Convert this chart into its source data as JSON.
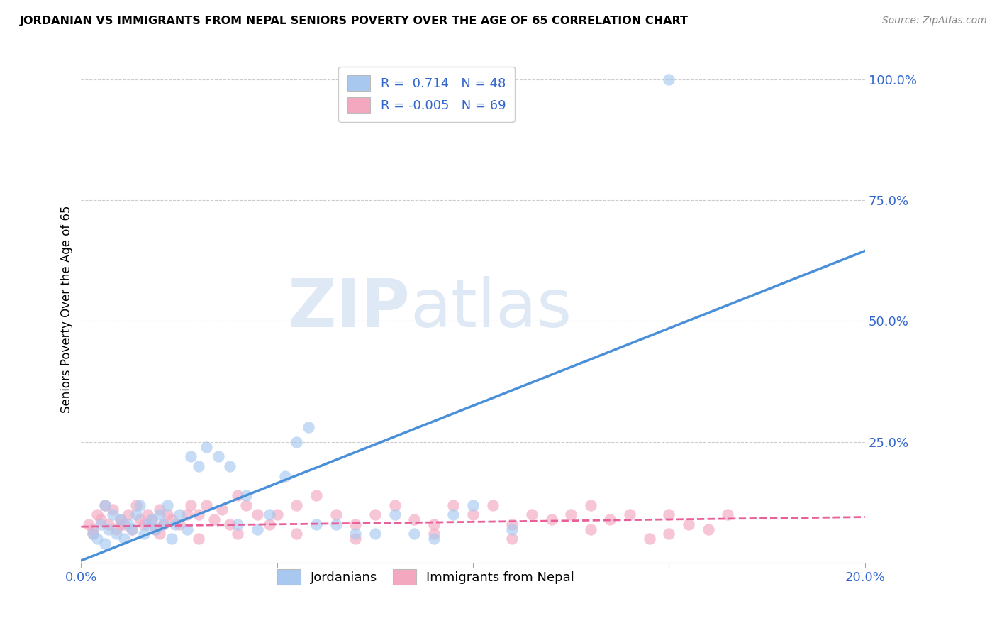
{
  "title": "JORDANIAN VS IMMIGRANTS FROM NEPAL SENIORS POVERTY OVER THE AGE OF 65 CORRELATION CHART",
  "source": "Source: ZipAtlas.com",
  "ylabel": "Seniors Poverty Over the Age of 65",
  "xlim": [
    0.0,
    0.2
  ],
  "ylim": [
    0.0,
    1.05
  ],
  "jordanian_color": "#A8C8F0",
  "nepal_color": "#F4A8C0",
  "jordan_R": 0.714,
  "jordan_N": 48,
  "nepal_R": -0.005,
  "nepal_N": 69,
  "trend_blue": "#4A90D9",
  "trend_pink": "#E8609A",
  "watermark_color": "#C5D8ED",
  "jordanian_x": [
    0.003,
    0.004,
    0.005,
    0.006,
    0.007,
    0.008,
    0.009,
    0.01,
    0.011,
    0.012,
    0.013,
    0.014,
    0.015,
    0.016,
    0.017,
    0.018,
    0.019,
    0.02,
    0.021,
    0.022,
    0.023,
    0.024,
    0.025,
    0.027,
    0.028,
    0.03,
    0.032,
    0.035,
    0.038,
    0.04,
    0.042,
    0.045,
    0.048,
    0.052,
    0.055,
    0.058,
    0.06,
    0.065,
    0.07,
    0.075,
    0.08,
    0.085,
    0.09,
    0.095,
    0.1,
    0.11,
    0.15,
    0.006
  ],
  "jordanian_y": [
    0.06,
    0.05,
    0.08,
    0.12,
    0.07,
    0.1,
    0.06,
    0.09,
    0.05,
    0.08,
    0.07,
    0.1,
    0.12,
    0.06,
    0.08,
    0.09,
    0.07,
    0.1,
    0.08,
    0.12,
    0.05,
    0.08,
    0.1,
    0.07,
    0.22,
    0.2,
    0.24,
    0.22,
    0.2,
    0.08,
    0.14,
    0.07,
    0.1,
    0.18,
    0.25,
    0.28,
    0.08,
    0.08,
    0.06,
    0.06,
    0.1,
    0.06,
    0.05,
    0.1,
    0.12,
    0.07,
    1.0,
    0.04
  ],
  "nepal_x": [
    0.002,
    0.003,
    0.004,
    0.005,
    0.006,
    0.007,
    0.008,
    0.009,
    0.01,
    0.011,
    0.012,
    0.013,
    0.014,
    0.015,
    0.016,
    0.017,
    0.018,
    0.019,
    0.02,
    0.021,
    0.022,
    0.023,
    0.025,
    0.027,
    0.028,
    0.03,
    0.032,
    0.034,
    0.036,
    0.038,
    0.04,
    0.042,
    0.045,
    0.048,
    0.05,
    0.055,
    0.06,
    0.065,
    0.07,
    0.075,
    0.08,
    0.085,
    0.09,
    0.095,
    0.1,
    0.105,
    0.11,
    0.115,
    0.12,
    0.125,
    0.13,
    0.135,
    0.14,
    0.145,
    0.15,
    0.155,
    0.16,
    0.003,
    0.01,
    0.02,
    0.03,
    0.04,
    0.055,
    0.07,
    0.09,
    0.11,
    0.13,
    0.15,
    0.165
  ],
  "nepal_y": [
    0.08,
    0.07,
    0.1,
    0.09,
    0.12,
    0.08,
    0.11,
    0.07,
    0.09,
    0.08,
    0.1,
    0.07,
    0.12,
    0.09,
    0.08,
    0.1,
    0.09,
    0.07,
    0.11,
    0.08,
    0.1,
    0.09,
    0.08,
    0.1,
    0.12,
    0.1,
    0.12,
    0.09,
    0.11,
    0.08,
    0.14,
    0.12,
    0.1,
    0.08,
    0.1,
    0.12,
    0.14,
    0.1,
    0.08,
    0.1,
    0.12,
    0.09,
    0.08,
    0.12,
    0.1,
    0.12,
    0.08,
    0.1,
    0.09,
    0.1,
    0.12,
    0.09,
    0.1,
    0.05,
    0.1,
    0.08,
    0.07,
    0.06,
    0.08,
    0.06,
    0.05,
    0.06,
    0.06,
    0.05,
    0.06,
    0.05,
    0.07,
    0.06,
    0.1
  ]
}
